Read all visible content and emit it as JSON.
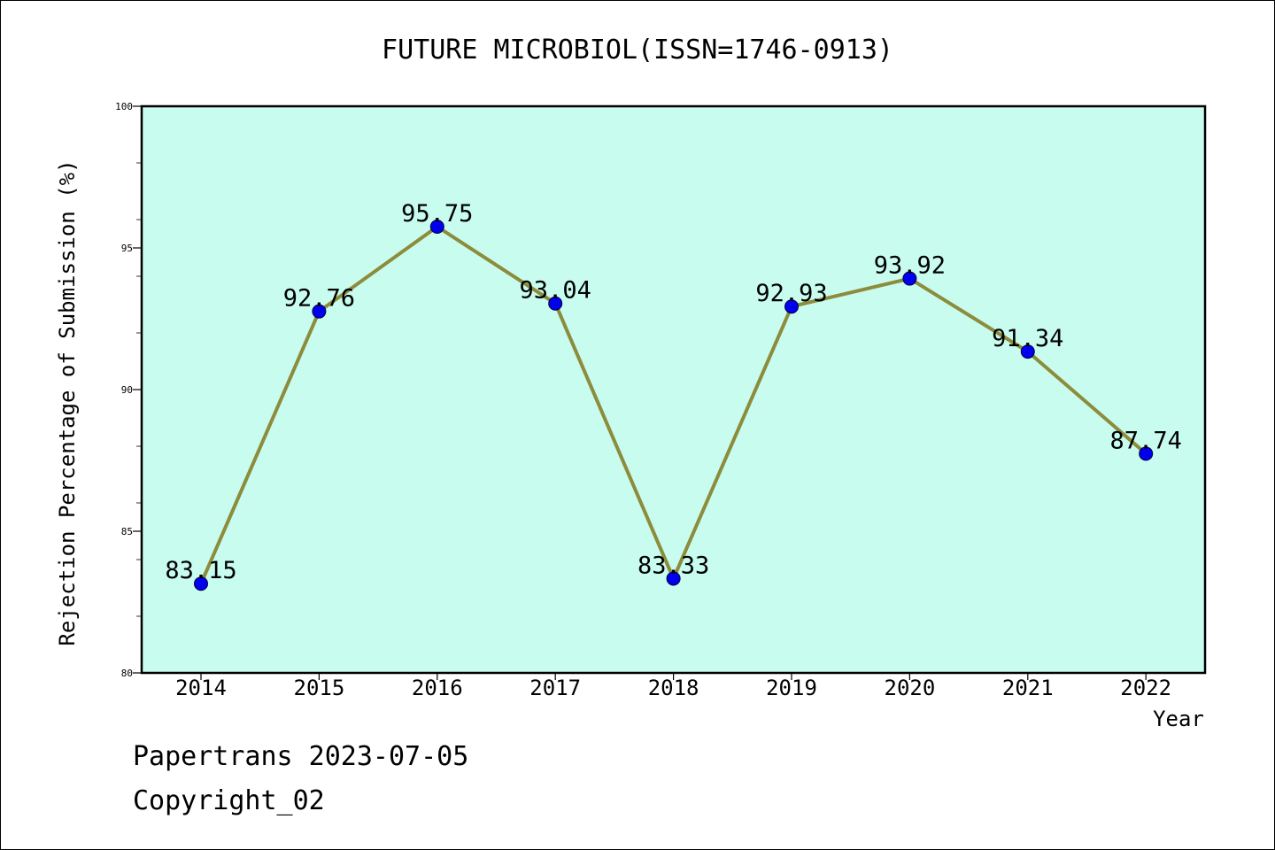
{
  "chart_data": {
    "type": "line",
    "title": "FUTURE MICROBIOL(ISSN=1746-0913)",
    "xlabel": "Year",
    "ylabel": "Rejection Percentage of Submission (%)",
    "categories": [
      "2014",
      "2015",
      "2016",
      "2017",
      "2018",
      "2019",
      "2020",
      "2021",
      "2022"
    ],
    "values": [
      83.15,
      92.76,
      95.75,
      93.04,
      83.33,
      92.93,
      93.92,
      91.34,
      87.74
    ],
    "data_labels": [
      "83.15",
      "92.76",
      "95.75",
      "93.04",
      "83.33",
      "92.93",
      "93.92",
      "91.34",
      "87.74"
    ],
    "ylim": [
      80,
      100
    ],
    "yticks": [
      "80",
      "85",
      "90",
      "95",
      "100"
    ],
    "grid": false,
    "legend": "none",
    "colors": {
      "plot_background": "#c8fcee",
      "line": "#8c8c3c",
      "marker": "#0000ee"
    }
  },
  "footer": {
    "line1": "Papertrans 2023-07-05",
    "line2": "Copyright_02"
  }
}
